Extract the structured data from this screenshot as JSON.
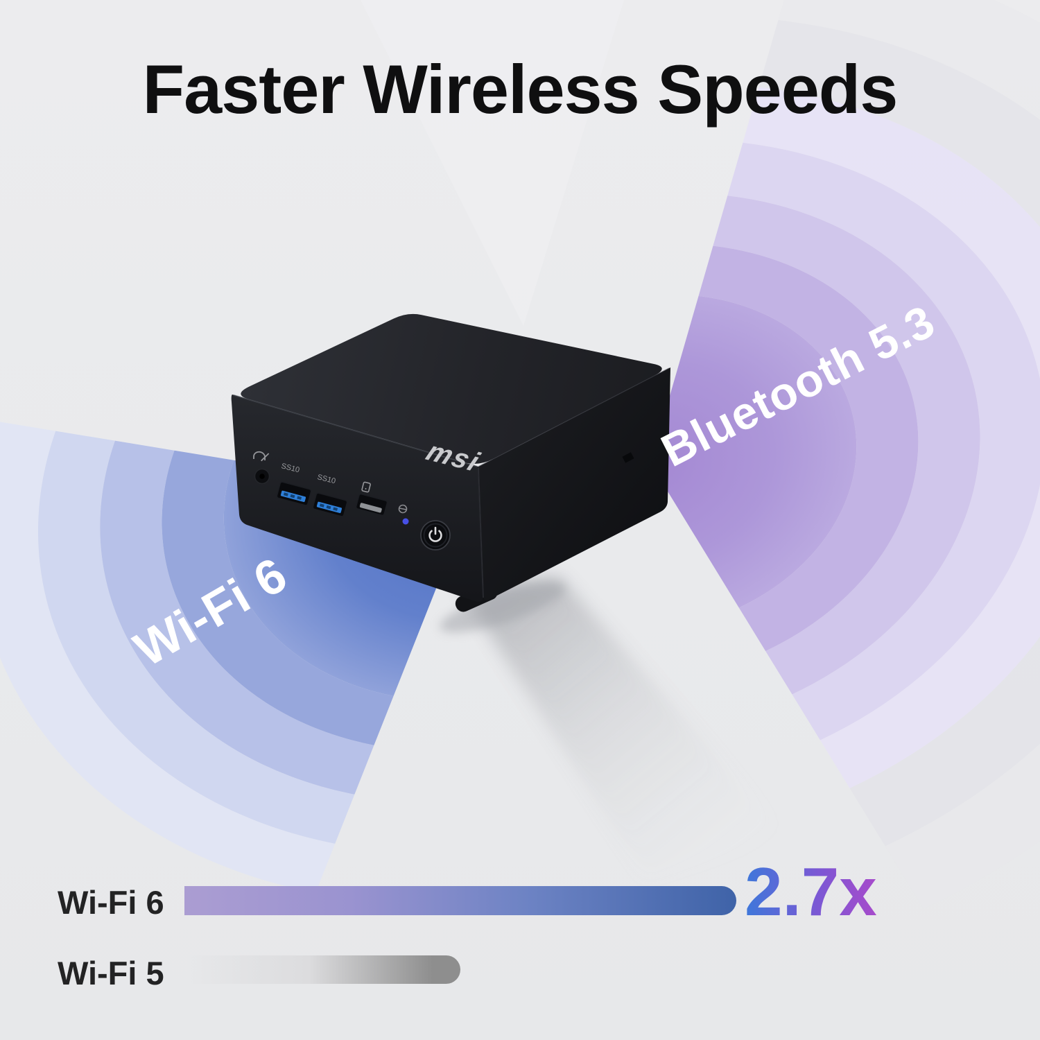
{
  "title": "Faster Wireless Speeds",
  "overlays": {
    "wifi_label": "Wi-Fi 6",
    "bluetooth_label": "Bluetooth 5.3"
  },
  "device": {
    "brand": "msi",
    "usb_port_label_1": "SS10",
    "usb_port_label_2": "SS10"
  },
  "chart": {
    "rows": [
      {
        "label": "Wi-Fi 6",
        "value_label": "2.7x"
      },
      {
        "label": "Wi-Fi 5",
        "value_label": ""
      }
    ]
  },
  "chart_data": {
    "type": "bar",
    "orientation": "horizontal",
    "categories": [
      "Wi-Fi 6",
      "Wi-Fi 5"
    ],
    "values": [
      2.7,
      1.0
    ],
    "value_labels": [
      "2.7x",
      ""
    ],
    "title": "Faster Wireless Speeds",
    "xlabel": "",
    "ylabel": "",
    "legend": false,
    "grid": false,
    "annotations": [
      "Wi-Fi 6",
      "Bluetooth 5.3"
    ]
  },
  "colors": {
    "background": "#e9eaec",
    "title_color": "#0f0f10",
    "label_color": "#232324",
    "device_black": "#1c1d21",
    "usb_blue": "#2e7fd8",
    "led_blue": "#4750e6",
    "wifi_inner": [
      "#5070c5",
      "#6280cc",
      "#90a2da"
    ],
    "wifi_bands": [
      "#97a7dc",
      "#b7c1e8",
      "#d0d7f0",
      "#e0e4f5"
    ],
    "bt_inner": [
      "#a488d3",
      "#ad97d9",
      "#baa9e0"
    ],
    "bt_bands": [
      "#c2b3e4",
      "#d0c6eb",
      "#dcd6f1",
      "#e7e3f6"
    ],
    "bt_gray_bands": [
      "#e2e2e8",
      "#e7e7eb"
    ],
    "wifi_bar_stops": [
      "#ab9dd2",
      "#9a93d0",
      "#6d83c4",
      "#3f63a8"
    ],
    "wifi5_bar_stops": [
      "rgba(234,234,236,0)",
      "#dcdcde",
      "#8e8e8e"
    ],
    "value_text_gradient": [
      "#3e78da",
      "#7b58d4",
      "#a74bcb"
    ]
  }
}
